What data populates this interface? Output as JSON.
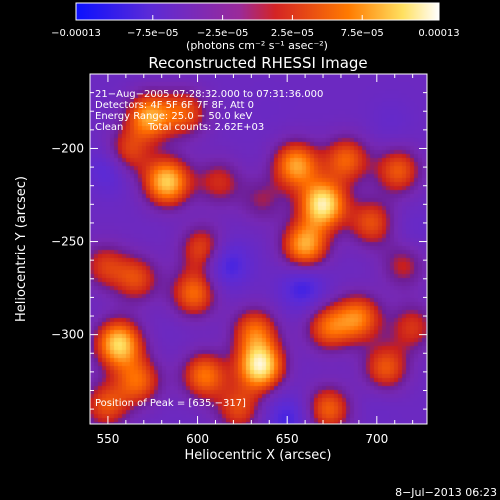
{
  "chart_data": {
    "type": "heatmap",
    "title": "Reconstructed RHESSI Image",
    "xlabel": "Heliocentric X (arcsec)",
    "ylabel": "Heliocentric Y (arcsec)",
    "xlim": [
      540,
      728
    ],
    "ylim": [
      -348,
      -160
    ],
    "x_ticks": [
      550,
      600,
      650,
      700
    ],
    "x_tick_labels": [
      "550",
      "600",
      "650",
      "700"
    ],
    "y_ticks": [
      -200,
      -250,
      -300
    ],
    "y_tick_labels": [
      "−200",
      "−250",
      "−300"
    ],
    "colorbar": {
      "range": [
        -0.00013,
        0.00013
      ],
      "ticks": [
        -0.00013,
        -7.5e-05,
        -2.5e-05,
        2.5e-05,
        7.5e-05,
        0.00013
      ],
      "tick_labels": [
        "−0.00013",
        "−7.5e−05",
        "−2.5e−05",
        "2.5e−05",
        "7.5e−05",
        "0.00013"
      ],
      "unit": "(photons cm⁻² s⁻¹ asec⁻²)",
      "colors": [
        "#0b10ff",
        "#6a2cc8",
        "#c82020",
        "#ff7a00",
        "#ffe060",
        "#ffffff"
      ]
    },
    "annotations": [
      "21−Aug−2005 07:28:32.000 to 07:31:36.000",
      "Detectors: 4F 5F 6F 7F 8F, Att 0",
      "Energy Range: 25.0 − 50.0 keV",
      "Clean",
      "Total counts: 2.62E+03",
      "Position of Peak = [635,−317]"
    ],
    "peak": [
      635,
      -317
    ],
    "sources": [
      {
        "x": 573,
        "y": -183,
        "value": 9e-05
      },
      {
        "x": 560,
        "y": -203,
        "value": 5.5e-05
      },
      {
        "x": 583,
        "y": -218,
        "value": 0.00011
      },
      {
        "x": 593,
        "y": -181,
        "value": 5e-05
      },
      {
        "x": 603,
        "y": -254,
        "value": 5e-05
      },
      {
        "x": 612,
        "y": -218,
        "value": 3e-05
      },
      {
        "x": 548,
        "y": -263,
        "value": 3.5e-05
      },
      {
        "x": 566,
        "y": -270,
        "value": 4.5e-05
      },
      {
        "x": 556,
        "y": -305,
        "value": 0.000115
      },
      {
        "x": 567,
        "y": -325,
        "value": 6e-05
      },
      {
        "x": 549,
        "y": -338,
        "value": 5e-05
      },
      {
        "x": 598,
        "y": -278,
        "value": 6.5e-05
      },
      {
        "x": 604,
        "y": -322,
        "value": 7e-05
      },
      {
        "x": 632,
        "y": -298,
        "value": 6e-05
      },
      {
        "x": 635,
        "y": -317,
        "value": 0.00013
      },
      {
        "x": 623,
        "y": -340,
        "value": 4.5e-05
      },
      {
        "x": 655,
        "y": -209,
        "value": 9e-05
      },
      {
        "x": 670,
        "y": -230,
        "value": 0.000128
      },
      {
        "x": 660,
        "y": -252,
        "value": 9.5e-05
      },
      {
        "x": 683,
        "y": -206,
        "value": 6e-05
      },
      {
        "x": 697,
        "y": -240,
        "value": 5e-05
      },
      {
        "x": 712,
        "y": -212,
        "value": 5.5e-05
      },
      {
        "x": 673,
        "y": -296,
        "value": 6e-05
      },
      {
        "x": 690,
        "y": -291,
        "value": 7e-05
      },
      {
        "x": 673,
        "y": -340,
        "value": 6e-05
      },
      {
        "x": 705,
        "y": -318,
        "value": 5.5e-05
      },
      {
        "x": 720,
        "y": -296,
        "value": 3.5e-05
      },
      {
        "x": 715,
        "y": -263,
        "value": 2.5e-05
      },
      {
        "x": 636,
        "y": -228,
        "value": 1.5e-05
      },
      {
        "x": 552,
        "y": -210,
        "value": -8e-05
      },
      {
        "x": 616,
        "y": -262,
        "value": -8.5e-05
      },
      {
        "x": 659,
        "y": -275,
        "value": -8e-05
      },
      {
        "x": 650,
        "y": -345,
        "value": -7.5e-05
      },
      {
        "x": 708,
        "y": -186,
        "value": -4e-05
      },
      {
        "x": 720,
        "y": -245,
        "value": -4e-05
      },
      {
        "x": 588,
        "y": -296,
        "value": -3e-05
      },
      {
        "x": 640,
        "y": -180,
        "value": -3e-05
      },
      {
        "x": 700,
        "y": -335,
        "value": -3.5e-05
      }
    ]
  },
  "footer": {
    "timestamp": "8−Jul−2013 06:23"
  }
}
